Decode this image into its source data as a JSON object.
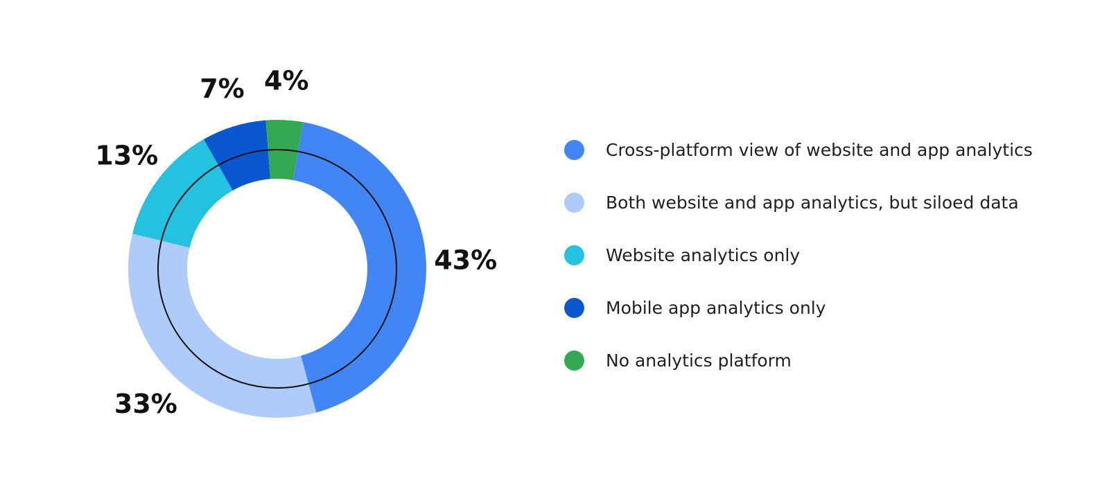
{
  "chart_data": {
    "type": "pie",
    "title": "",
    "start_angle_deg": 10,
    "direction": "clockwise",
    "inner_ring_outline": true,
    "legend_position": "right",
    "categories": [
      "Cross-platform view of website and app analytics",
      "Both website and app analytics, but siloed data",
      "Website analytics only",
      "Mobile app analytics only",
      "No analytics platform"
    ],
    "values": [
      43,
      33,
      13,
      7,
      4
    ],
    "labels": [
      "43%",
      "33%",
      "13%",
      "7%",
      "4%"
    ],
    "colors": [
      "#4285F4",
      "#AECBFA",
      "#24C1E0",
      "#0B57D0",
      "#34A853"
    ]
  }
}
